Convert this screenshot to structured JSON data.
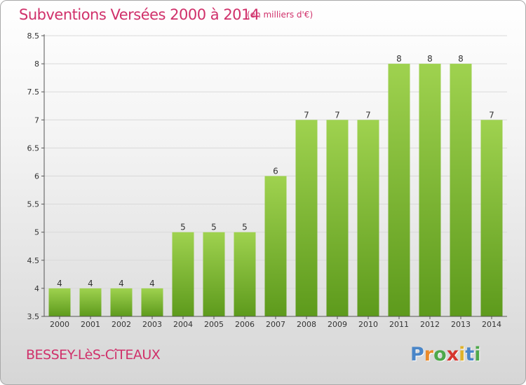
{
  "title": "Subventions Versées 2000 à 2014",
  "unit_note": "(en milliers d'€)",
  "commune": "BESSEY-LèS-CîTEAUX",
  "logo": {
    "text": "Proxiti",
    "letters": [
      "P",
      "r",
      "o",
      "x",
      "i",
      "t",
      "i"
    ],
    "colors": [
      "#4a86c8",
      "#e98a2b",
      "#4ea84a",
      "#d6352f",
      "#e0b22a",
      "#4a86c8",
      "#4ea84a"
    ]
  },
  "colors": {
    "title": "#d0306a",
    "bar_top": "#9fd24f",
    "bar_bottom": "#5d9a1c",
    "axis": "#555555",
    "grid": "#d9d9d9",
    "text": "#333333"
  },
  "chart_data": {
    "type": "bar",
    "categories": [
      "2000",
      "2001",
      "2002",
      "2003",
      "2004",
      "2005",
      "2006",
      "2007",
      "2008",
      "2009",
      "2010",
      "2011",
      "2012",
      "2013",
      "2014"
    ],
    "values": [
      4,
      4,
      4,
      4,
      5,
      5,
      5,
      6,
      7,
      7,
      7,
      8,
      8,
      8,
      7
    ],
    "data_labels": [
      "4",
      "4",
      "4",
      "4",
      "5",
      "5",
      "5",
      "6",
      "7",
      "7",
      "7",
      "8",
      "8",
      "8",
      "7"
    ],
    "title": "Subventions Versées 2000 à 2014",
    "xlabel": "",
    "ylabel": "",
    "ylim": [
      3.5,
      8.5
    ],
    "yticks": [
      3.5,
      4,
      4.5,
      5,
      5.5,
      6,
      6.5,
      7,
      7.5,
      8,
      8.5
    ],
    "ytick_labels": [
      "3.5",
      "4",
      "4.5",
      "5",
      "5.5",
      "6",
      "6.5",
      "7",
      "7.5",
      "8",
      "8.5"
    ],
    "grid": true
  }
}
